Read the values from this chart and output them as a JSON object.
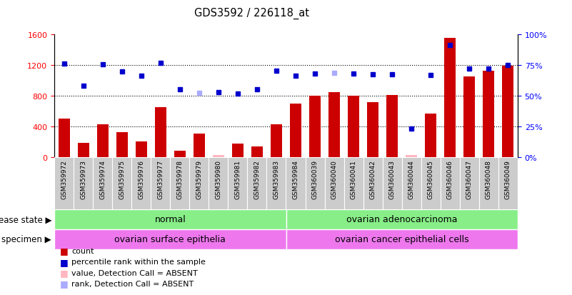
{
  "title": "GDS3592 / 226118_at",
  "samples": [
    "GSM359972",
    "GSM359973",
    "GSM359974",
    "GSM359975",
    "GSM359976",
    "GSM359977",
    "GSM359978",
    "GSM359979",
    "GSM359980",
    "GSM359981",
    "GSM359982",
    "GSM359983",
    "GSM359984",
    "GSM360039",
    "GSM360040",
    "GSM360041",
    "GSM360042",
    "GSM360043",
    "GSM360044",
    "GSM360045",
    "GSM360046",
    "GSM360047",
    "GSM360048",
    "GSM360049"
  ],
  "counts": [
    500,
    190,
    430,
    330,
    210,
    650,
    85,
    310,
    30,
    175,
    145,
    430,
    700,
    800,
    850,
    800,
    720,
    810,
    25,
    570,
    1560,
    1050,
    1130,
    1190
  ],
  "absent_count_indices": [
    8,
    18
  ],
  "ranks": [
    1220,
    930,
    1210,
    1120,
    1060,
    1230,
    890,
    840,
    850,
    830,
    890,
    1130,
    1060,
    1090,
    1100,
    1090,
    1080,
    1080,
    370,
    1070,
    1460,
    1160,
    1160,
    1200
  ],
  "absent_rank_indices": [
    7,
    14
  ],
  "ylim_left": [
    0,
    1600
  ],
  "ylim_right": [
    0,
    100
  ],
  "yticks_left": [
    0,
    400,
    800,
    1200,
    1600
  ],
  "yticks_right": [
    0,
    25,
    50,
    75,
    100
  ],
  "bar_color_normal": "#CC0000",
  "bar_color_absent": "#FFB6C1",
  "rank_color_normal": "#0000CC",
  "rank_color_absent": "#AAAAFF",
  "group_split": 12,
  "group1_label": "normal",
  "group2_label": "ovarian adenocarcinoma",
  "specimen1_label": "ovarian surface epithelia",
  "specimen2_label": "ovarian cancer epithelial cells",
  "disease_label": "disease state",
  "specimen_label": "specimen",
  "green_color": "#88EE88",
  "magenta_color": "#EE77EE",
  "legend_items": [
    {
      "label": "count",
      "color": "#CC0000"
    },
    {
      "label": "percentile rank within the sample",
      "color": "#0000CC"
    },
    {
      "label": "value, Detection Call = ABSENT",
      "color": "#FFB6C1"
    },
    {
      "label": "rank, Detection Call = ABSENT",
      "color": "#AAAAFF"
    }
  ],
  "bg_color": "#FFFFFF",
  "tick_bg_color": "#CCCCCC",
  "dotted_lines": [
    400,
    800,
    1200
  ],
  "bar_width": 0.6,
  "marker_size": 5
}
